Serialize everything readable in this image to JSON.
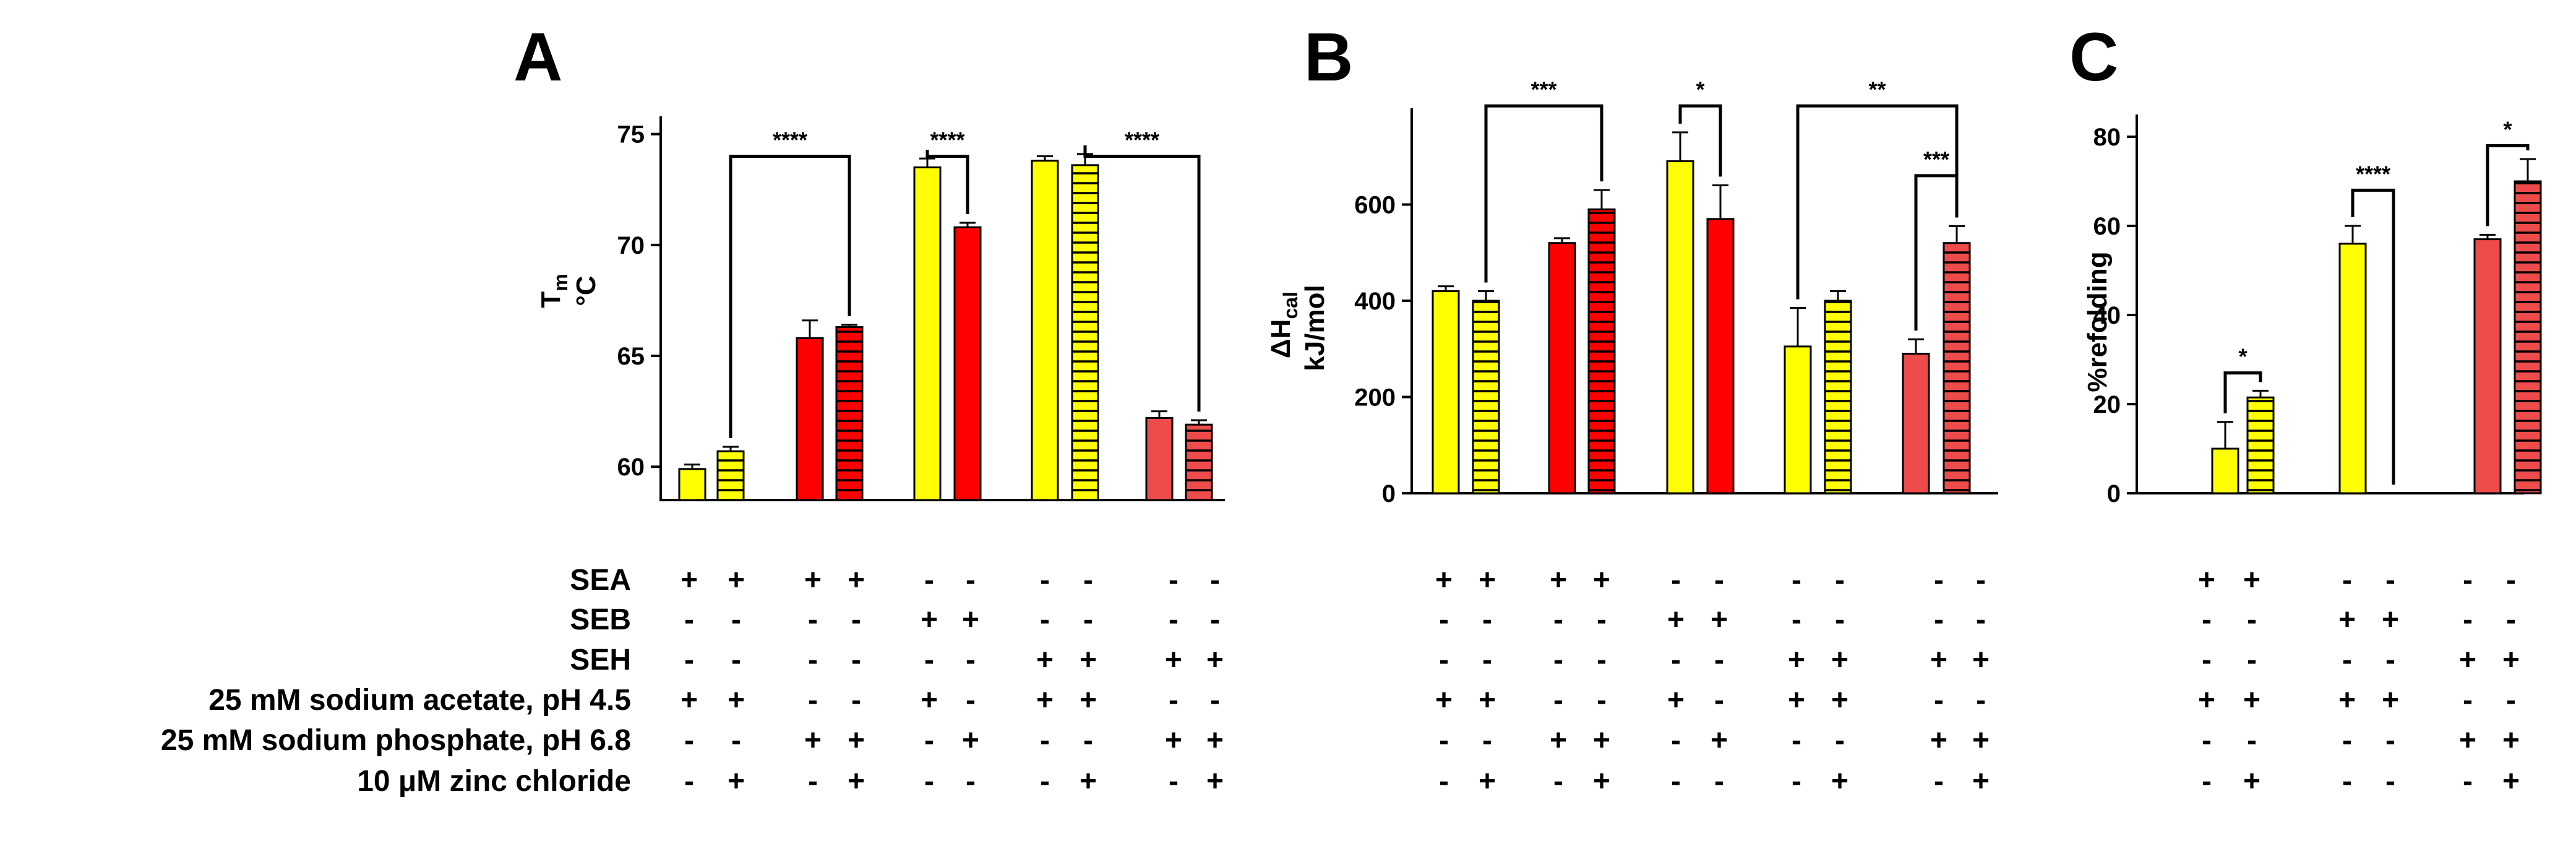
{
  "colors": {
    "yellow": "#ffff00",
    "red": "#ff0000",
    "salmon": "#ee4b4b",
    "stroke": "#000000"
  },
  "conditions": {
    "labels": [
      "SEA",
      "SEB",
      "SEH",
      "25 mM sodium acetate, pH 4.5",
      "25 mM sodium phosphate, pH 6.8",
      "10 μM zinc chloride"
    ],
    "rows_all": [
      [
        "+",
        "+",
        "+",
        "+",
        "-",
        "-",
        "-",
        "-",
        "-",
        "-"
      ],
      [
        "-",
        "-",
        "-",
        "-",
        "+",
        "+",
        "-",
        "-",
        "-",
        "-"
      ],
      [
        "-",
        "-",
        "-",
        "-",
        "-",
        "-",
        "+",
        "+",
        "+",
        "+"
      ],
      [
        "+",
        "+",
        "-",
        "-",
        "+",
        "-",
        "+",
        "+",
        "-",
        "-"
      ],
      [
        "-",
        "-",
        "+",
        "+",
        "-",
        "+",
        "-",
        "-",
        "+",
        "+"
      ],
      [
        "-",
        "+",
        "-",
        "+",
        "-",
        "-",
        "-",
        "+",
        "-",
        "+"
      ]
    ],
    "rows_c": [
      [
        "+",
        "+",
        "-",
        "-",
        "-",
        "-"
      ],
      [
        "-",
        "-",
        "+",
        "+",
        "-",
        "-"
      ],
      [
        "-",
        "-",
        "-",
        "-",
        "+",
        "+"
      ],
      [
        "+",
        "+",
        "+",
        "+",
        "-",
        "-"
      ],
      [
        "-",
        "-",
        "-",
        "-",
        "+",
        "+"
      ],
      [
        "-",
        "+",
        "-",
        "-",
        "-",
        "+"
      ]
    ]
  },
  "chart_data": [
    {
      "panel": "A",
      "type": "bar",
      "ylabel": "Tm °C",
      "ylabel_main": "T",
      "ylabel_sub": "m",
      "ylabel_unit": "°C",
      "ylim": [
        58.5,
        75.8
      ],
      "yticks": [
        60,
        65,
        70,
        75
      ],
      "bars": [
        {
          "value": 59.9,
          "error": 0.2,
          "color": "yellow",
          "pattern": "solid"
        },
        {
          "value": 60.7,
          "error": 0.2,
          "color": "yellow",
          "pattern": "striped"
        },
        {
          "value": 65.8,
          "error": 0.8,
          "color": "red",
          "pattern": "solid"
        },
        {
          "value": 66.3,
          "error": 0.1,
          "color": "red",
          "pattern": "striped"
        },
        {
          "value": 73.5,
          "error": 0.4,
          "color": "yellow",
          "pattern": "solid"
        },
        {
          "value": 70.8,
          "error": 0.2,
          "color": "red",
          "pattern": "solid"
        },
        {
          "value": 73.8,
          "error": 0.2,
          "color": "yellow",
          "pattern": "solid"
        },
        {
          "value": 73.6,
          "error": 0.5,
          "color": "yellow",
          "pattern": "striped"
        },
        {
          "value": 62.2,
          "error": 0.3,
          "color": "salmon",
          "pattern": "solid"
        },
        {
          "value": 61.9,
          "error": 0.2,
          "color": "salmon",
          "pattern": "striped"
        }
      ],
      "brackets": [
        {
          "from": 1,
          "to": 3,
          "top": 74.0,
          "label": "****"
        },
        {
          "from": 4,
          "to": 5,
          "top": 74.0,
          "label": "****"
        },
        {
          "from": 7,
          "to": 9,
          "top": 74.0,
          "label": "****"
        }
      ]
    },
    {
      "panel": "B",
      "type": "bar",
      "ylabel": "ΔHcal kJ/mol",
      "ylabel_main": "ΔH",
      "ylabel_sub": "cal",
      "ylabel_unit": "kJ/mol",
      "ylim": [
        0,
        800
      ],
      "yticks": [
        0,
        200,
        400,
        600
      ],
      "bars": [
        {
          "value": 420,
          "error": 10,
          "color": "yellow",
          "pattern": "solid"
        },
        {
          "value": 400,
          "error": 20,
          "color": "yellow",
          "pattern": "striped"
        },
        {
          "value": 520,
          "error": 10,
          "color": "red",
          "pattern": "solid"
        },
        {
          "value": 590,
          "error": 40,
          "color": "red",
          "pattern": "striped"
        },
        {
          "value": 690,
          "error": 60,
          "color": "yellow",
          "pattern": "solid"
        },
        {
          "value": 570,
          "error": 70,
          "color": "red",
          "pattern": "solid"
        },
        {
          "value": 305,
          "error": 80,
          "color": "yellow",
          "pattern": "solid"
        },
        {
          "value": 400,
          "error": 20,
          "color": "yellow",
          "pattern": "striped"
        },
        {
          "value": 290,
          "error": 30,
          "color": "salmon",
          "pattern": "solid"
        },
        {
          "value": 520,
          "error": 35,
          "color": "salmon",
          "pattern": "striped"
        }
      ],
      "brackets": [
        {
          "from": 1,
          "to": 3,
          "top": 805,
          "label": "***"
        },
        {
          "from": 4,
          "to": 5,
          "top": 805,
          "label": "*"
        },
        {
          "from": 6,
          "to": 9,
          "top": 805,
          "label": "**"
        },
        {
          "from": 8,
          "to": 9,
          "top": 660,
          "label": "***"
        }
      ]
    },
    {
      "panel": "C",
      "type": "bar",
      "ylabel": "%refolding",
      "ylabel_main": "%refolding",
      "ylabel_sub": "",
      "ylabel_unit": "",
      "ylim": [
        0,
        85
      ],
      "yticks": [
        0,
        20,
        40,
        60,
        80
      ],
      "bars": [
        {
          "value": 10,
          "error": 6,
          "color": "yellow",
          "pattern": "solid"
        },
        {
          "value": 21.5,
          "error": 1.5,
          "color": "yellow",
          "pattern": "striped"
        },
        {
          "value": 56,
          "error": 4,
          "color": "yellow",
          "pattern": "solid"
        },
        {
          "value": 0,
          "error": 0,
          "color": "yellow",
          "pattern": "solid"
        },
        {
          "value": 57,
          "error": 1,
          "color": "salmon",
          "pattern": "solid"
        },
        {
          "value": 70,
          "error": 5,
          "color": "salmon",
          "pattern": "striped"
        }
      ],
      "brackets": [
        {
          "from": 0,
          "to": 1,
          "top": 27,
          "label": "*"
        },
        {
          "from": 2,
          "to": 3,
          "top": 68,
          "label": "****"
        },
        {
          "from": 4,
          "to": 5,
          "top": 78,
          "label": "*"
        }
      ]
    }
  ]
}
